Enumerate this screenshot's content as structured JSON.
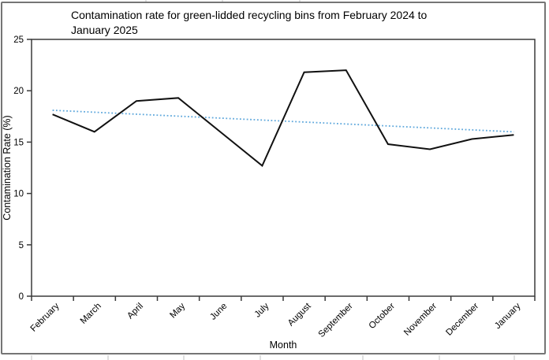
{
  "frame": {
    "background": "#ffffff",
    "border_color": "#757575"
  },
  "chart_data": {
    "type": "line",
    "title": "Contamination rate for green-lidded recycling bins from February 2024 to January 2025",
    "title_lines": [
      "Contamination rate for green-lidded recycling bins from February 2024 to",
      "January 2025"
    ],
    "xlabel": "Month",
    "ylabel": "Contamination Rate (%)",
    "categories": [
      "February",
      "March",
      "April",
      "May",
      "June",
      "July",
      "August",
      "September",
      "October",
      "November",
      "December",
      "January"
    ],
    "series": [
      {
        "name": "Contamination rate",
        "color": "#111111",
        "values": [
          17.7,
          16.0,
          19.0,
          19.3,
          16.0,
          12.7,
          21.8,
          22.0,
          14.8,
          14.3,
          15.3,
          15.7
        ]
      }
    ],
    "trendline": {
      "name": "Linear trendline",
      "color": "#5fa8dc",
      "style": "dotted",
      "start": 18.1,
      "end": 16.0
    },
    "ylim": [
      0,
      25
    ],
    "yticks": [
      0,
      5,
      10,
      15,
      20,
      25
    ],
    "grid": false,
    "legend": "none",
    "axis_color": "#3a3a3a",
    "text_color": "#000000"
  }
}
